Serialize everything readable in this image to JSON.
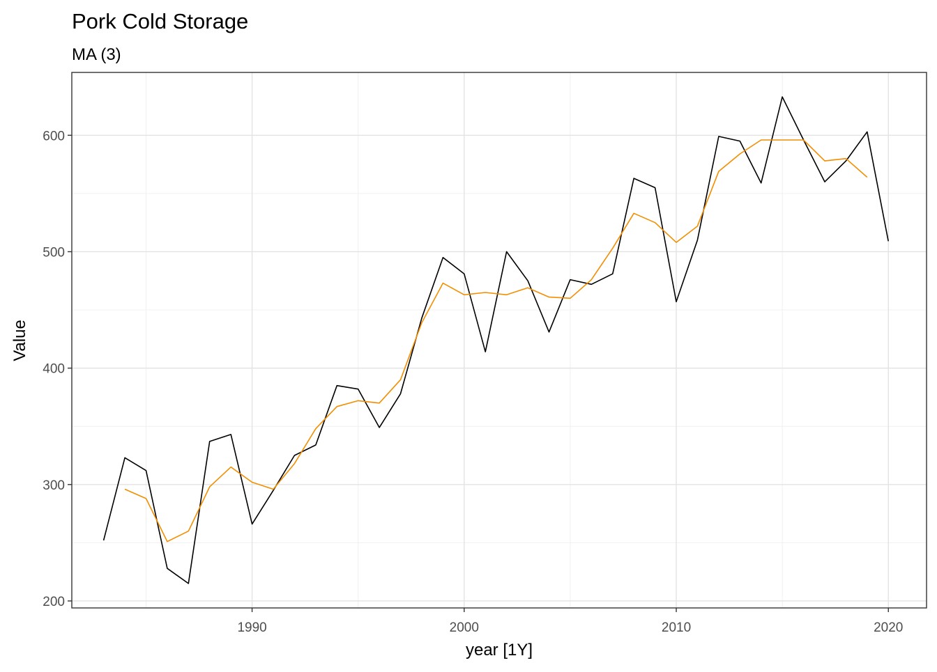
{
  "chart_data": {
    "type": "line",
    "title": "Pork Cold Storage",
    "subtitle": "MA (3)",
    "xlabel": "year [1Y]",
    "ylabel": "Value",
    "xlim": [
      1981.5,
      2021.8
    ],
    "ylim": [
      194,
      654
    ],
    "x_ticks": [
      1990,
      2000,
      2010,
      2020
    ],
    "x_tick_labels": [
      "1990",
      "2000",
      "2010",
      "2020"
    ],
    "y_ticks": [
      200,
      300,
      400,
      500,
      600
    ],
    "y_tick_labels": [
      "200",
      "300",
      "400",
      "500",
      "600"
    ],
    "x_minor": [
      1985,
      1995,
      2005,
      2015
    ],
    "y_minor": [
      250,
      350,
      450,
      550
    ],
    "grid": true,
    "legend": "none",
    "series": [
      {
        "color": "#000000",
        "x": [
          1983,
          1984,
          1985,
          1986,
          1987,
          1988,
          1989,
          1990,
          1991,
          1992,
          1993,
          1994,
          1995,
          1996,
          1997,
          1998,
          1999,
          2000,
          2001,
          2002,
          2003,
          2004,
          2005,
          2006,
          2007,
          2008,
          2009,
          2010,
          2011,
          2012,
          2013,
          2014,
          2015,
          2016,
          2017,
          2018,
          2019,
          2020
        ],
        "values": [
          252,
          323,
          312,
          228,
          215,
          337,
          343,
          266,
          295,
          325,
          334,
          385,
          382,
          349,
          378,
          443,
          495,
          481,
          414,
          500,
          475,
          431,
          476,
          472,
          481,
          563,
          555,
          457,
          510,
          599,
          595,
          559,
          633,
          596,
          560,
          578,
          603,
          509
        ]
      },
      {
        "color": "#f28e00",
        "x": [
          1984,
          1985,
          1986,
          1987,
          1988,
          1989,
          1990,
          1991,
          1992,
          1993,
          1994,
          1995,
          1996,
          1997,
          1998,
          1999,
          2000,
          2001,
          2002,
          2003,
          2004,
          2005,
          2006,
          2007,
          2008,
          2009,
          2010,
          2011,
          2012,
          2013,
          2014,
          2015,
          2016,
          2017,
          2018,
          2019
        ],
        "values": [
          296,
          288,
          251,
          260,
          298,
          315,
          302,
          296,
          318,
          348,
          367,
          372,
          370,
          390,
          439,
          473,
          463,
          465,
          463,
          469,
          461,
          460,
          476,
          503,
          533,
          525,
          508,
          522,
          569,
          584,
          596,
          596,
          596,
          578,
          580,
          564
        ]
      }
    ]
  }
}
